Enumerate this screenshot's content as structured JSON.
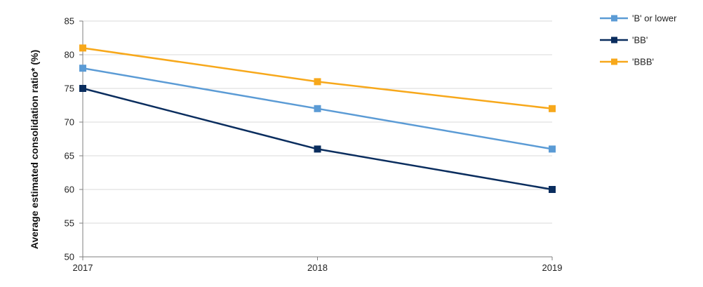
{
  "chart_data": {
    "type": "line",
    "title": "",
    "xlabel": "",
    "ylabel": "Average estimated consolidation ratio* (%)",
    "x": [
      "2017",
      "2018",
      "2019"
    ],
    "ylim": [
      50,
      85
    ],
    "yticks": [
      50,
      55,
      60,
      65,
      70,
      75,
      80,
      85
    ],
    "grid": "horizontal",
    "legend_position": "top-right",
    "series": [
      {
        "name": "'B' or lower",
        "values": [
          78,
          72,
          66
        ],
        "color": "#5b9bd5"
      },
      {
        "name": "'BB'",
        "values": [
          75,
          66,
          60
        ],
        "color": "#0a2d5e"
      },
      {
        "name": "'BBB'",
        "values": [
          81,
          76,
          72
        ],
        "color": "#f7a81b"
      }
    ]
  }
}
